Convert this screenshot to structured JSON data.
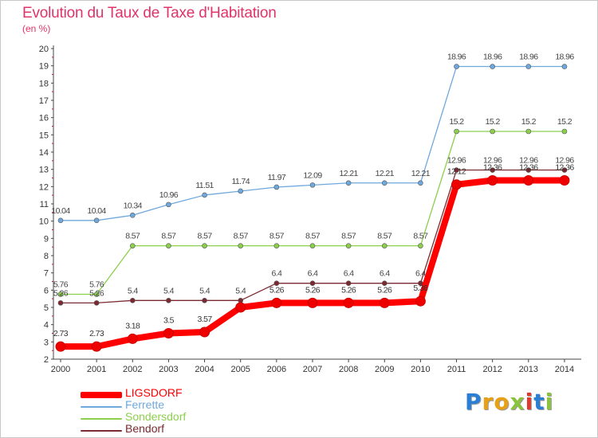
{
  "title": "Evolution du Taux de Taxe d'Habitation",
  "subtitle": "(en %)",
  "logo": {
    "letters": [
      "P",
      "r",
      "o",
      "x",
      "i",
      "t",
      "i"
    ],
    "colors": [
      "#2a7fd4",
      "#e8a015",
      "#e8a015",
      "#8ac43f",
      "#e03a30",
      "#2a7fd4",
      "#8ac43f"
    ]
  },
  "chart_data": {
    "type": "line",
    "x": [
      2000,
      2001,
      2002,
      2003,
      2004,
      2005,
      2006,
      2007,
      2008,
      2009,
      2010,
      2011,
      2012,
      2013,
      2014
    ],
    "ylim": [
      2,
      20
    ],
    "yticks": [
      2,
      3,
      4,
      5,
      6,
      7,
      8,
      9,
      10,
      11,
      12,
      13,
      14,
      15,
      16,
      17,
      18,
      19,
      20
    ],
    "title": "Evolution du Taux de Taxe d'Habitation",
    "ylabel": "(en %)",
    "grid": false,
    "legend_position": "bottom-left",
    "series": [
      {
        "name": "LIGSDORF",
        "color": "#ff0000",
        "values": [
          2.73,
          2.73,
          3.18,
          3.5,
          3.57,
          5.0,
          5.26,
          5.26,
          5.26,
          5.26,
          5.36,
          12.12,
          12.36,
          12.36,
          12.36
        ],
        "labels": [
          "2.73",
          "2.73",
          "3.18",
          "3.5",
          "3.57",
          "",
          "5.26",
          "5.26",
          "5.26",
          "5.26",
          "5.36",
          "12.12",
          "12.36",
          "12.36",
          "12.36"
        ]
      },
      {
        "name": "Ferrette",
        "color": "#6fa8dc",
        "values": [
          10.04,
          10.04,
          10.34,
          10.96,
          11.51,
          11.74,
          11.97,
          12.09,
          12.21,
          12.21,
          12.21,
          18.96,
          18.96,
          18.96,
          18.96
        ],
        "labels": [
          "10.04",
          "10.04",
          "10.34",
          "10.96",
          "11.51",
          "11.74",
          "11.97",
          "12.09",
          "12.21",
          "12.21",
          "12.21",
          "18.96",
          "18.96",
          "18.96",
          "18.96"
        ]
      },
      {
        "name": "Sondersdorf",
        "color": "#8ccf4d",
        "values": [
          5.76,
          5.76,
          8.57,
          8.57,
          8.57,
          8.57,
          8.57,
          8.57,
          8.57,
          8.57,
          8.57,
          15.2,
          15.2,
          15.2,
          15.2
        ],
        "labels": [
          "5.76",
          "5.76",
          "8.57",
          "8.57",
          "8.57",
          "8.57",
          "8.57",
          "8.57",
          "8.57",
          "8.57",
          "8.57",
          "15.2",
          "15.2",
          "15.2",
          "15.2"
        ]
      },
      {
        "name": "Bendorf",
        "color": "#7a2a30",
        "values": [
          5.26,
          5.26,
          5.4,
          5.4,
          5.4,
          5.4,
          6.4,
          6.4,
          6.4,
          6.4,
          6.4,
          12.96,
          12.96,
          12.96,
          12.96
        ],
        "labels": [
          "5.26",
          "5.26",
          "5.4",
          "5.4",
          "5.4",
          "5.4",
          "6.4",
          "6.4",
          "6.4",
          "6.4",
          "6.4",
          "12.96",
          "12.96",
          "12.96",
          "12.96"
        ]
      }
    ]
  }
}
